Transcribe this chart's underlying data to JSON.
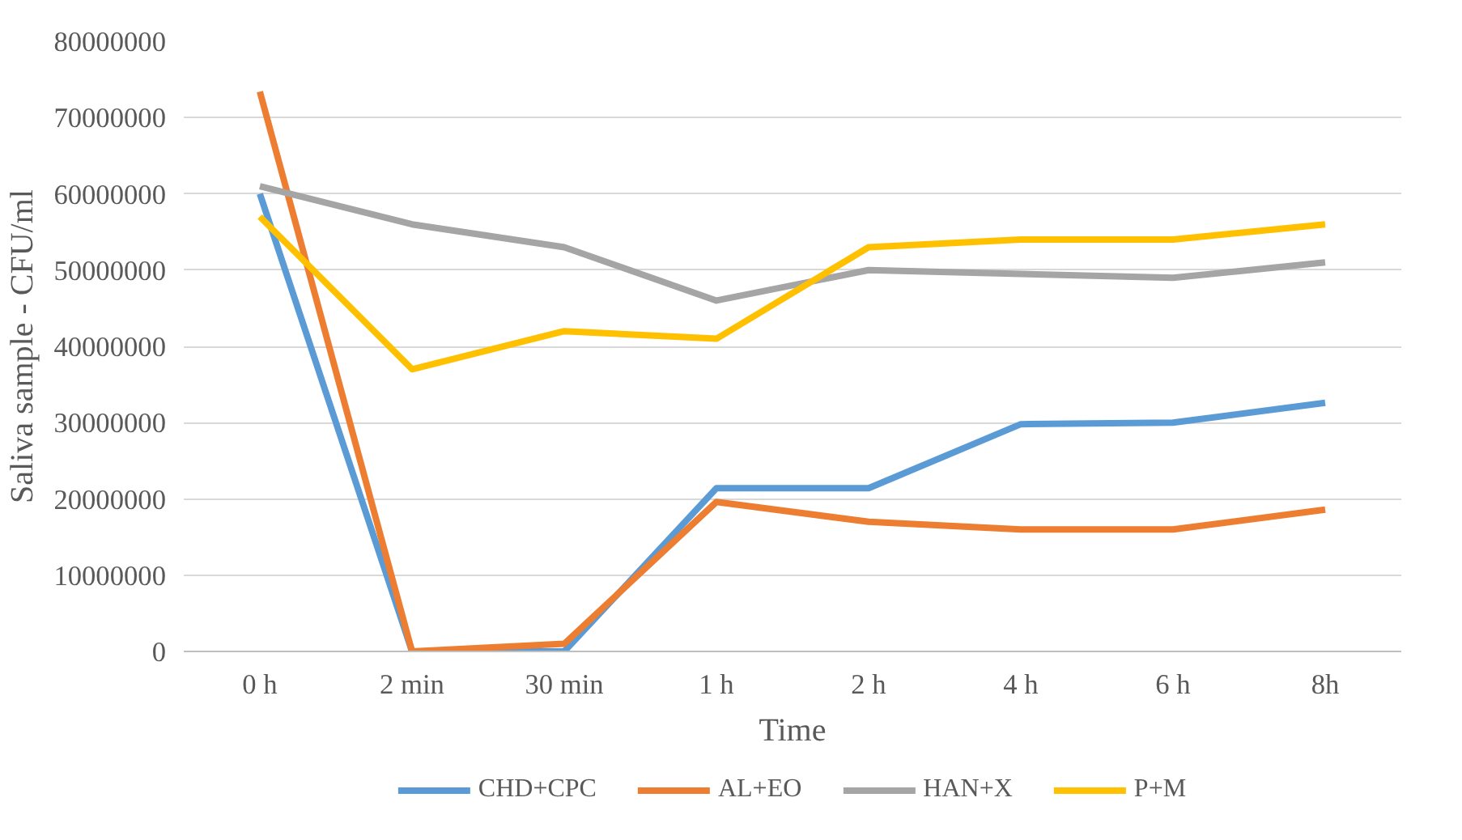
{
  "chart_data": {
    "type": "line",
    "xlabel": "Time",
    "ylabel": "Saliva sample - CFU/ml",
    "categories": [
      "0 h",
      "2 min",
      "30 min",
      "1 h",
      "2 h",
      "4 h",
      "6 h",
      "8h"
    ],
    "series": [
      {
        "name": "CHD+CPC",
        "color": "#5b9bd5",
        "values": [
          60000000,
          0,
          0,
          21400000,
          21400000,
          29800000,
          30000000,
          32600000
        ]
      },
      {
        "name": "AL+EO",
        "color": "#ed7d31",
        "values": [
          73400000,
          0,
          1000000,
          19600000,
          17000000,
          16000000,
          16000000,
          18600000
        ]
      },
      {
        "name": "HAN+X",
        "color": "#a5a5a5",
        "values": [
          61000000,
          56000000,
          53000000,
          46000000,
          50000000,
          49500000,
          49000000,
          51000000
        ]
      },
      {
        "name": "P+M",
        "color": "#ffc000",
        "values": [
          57000000,
          37000000,
          42000000,
          41000000,
          53000000,
          54000000,
          54000000,
          56000000
        ]
      }
    ],
    "ylim": [
      0,
      80000000
    ],
    "yticks": [
      0,
      10000000,
      20000000,
      30000000,
      40000000,
      50000000,
      60000000,
      70000000,
      80000000
    ],
    "grid": "y",
    "legend": "bottom",
    "line_style": "solid",
    "marker": "none"
  }
}
